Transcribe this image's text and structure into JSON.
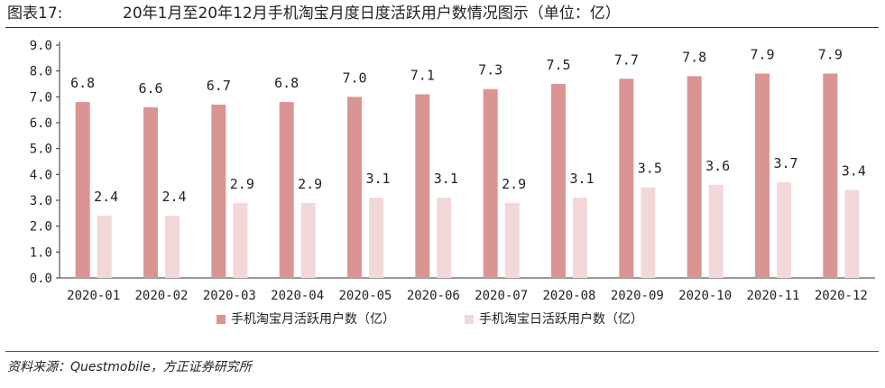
{
  "figure": {
    "number": "图表17:",
    "title": "20年1月至20年12月手机淘宝月度日度活跃用户数情况图示（单位：亿）",
    "source": "资料来源：Questmobile，方正证券研究所"
  },
  "colors": {
    "mau": "#d99594",
    "dau": "#f3d8da",
    "axis": "#333333"
  },
  "chart_data": {
    "type": "bar",
    "categories": [
      "2020-01",
      "2020-02",
      "2020-03",
      "2020-04",
      "2020-05",
      "2020-06",
      "2020-07",
      "2020-08",
      "2020-09",
      "2020-10",
      "2020-11",
      "2020-12"
    ],
    "series": [
      {
        "name": "手机淘宝月活跃用户数（亿）",
        "values": [
          6.8,
          6.6,
          6.7,
          6.8,
          7.0,
          7.1,
          7.3,
          7.5,
          7.7,
          7.8,
          7.9,
          7.9
        ]
      },
      {
        "name": "手机淘宝日活跃用户数（亿）",
        "values": [
          2.4,
          2.4,
          2.9,
          2.9,
          3.1,
          3.1,
          2.9,
          3.1,
          3.5,
          3.6,
          3.7,
          3.4
        ]
      }
    ],
    "yticks": [
      "0.0",
      "1.0",
      "2.0",
      "3.0",
      "4.0",
      "5.0",
      "6.0",
      "7.0",
      "8.0",
      "9.0"
    ],
    "ylim": [
      0,
      9
    ],
    "grid": false,
    "legend": "bottom-center",
    "data_labels": true
  }
}
